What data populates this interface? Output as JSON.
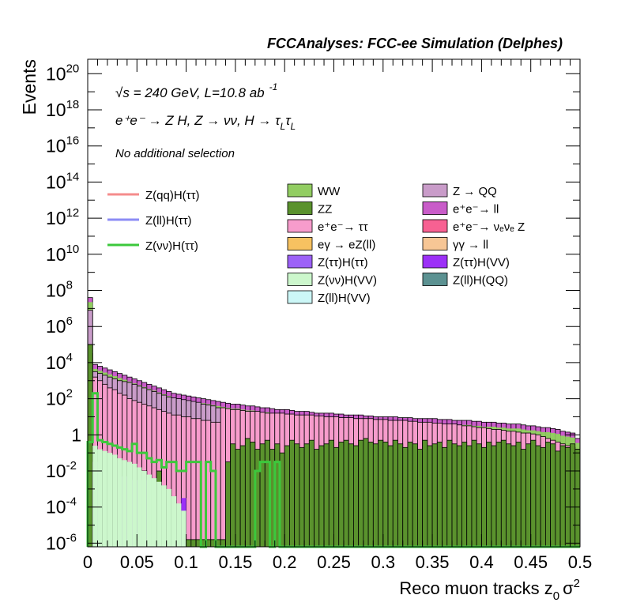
{
  "chart_data": {
    "type": "histogram",
    "title": "FCCAnalyses: FCC-ee Simulation (Delphes)",
    "xlabel": "Reco muon tracks z",
    "xlabel_sub": "0",
    "xlabel_tail": "σ",
    "xlabel_sup": "2",
    "ylabel": "Events",
    "xlim": [
      0,
      0.5
    ],
    "ylim_log10": [
      -6.2,
      20.8
    ],
    "y_log_scale": true,
    "grid": false,
    "x_ticks": [
      {
        "v": 0,
        "label": "0"
      },
      {
        "v": 0.05,
        "label": "0.05"
      },
      {
        "v": 0.1,
        "label": "0.1"
      },
      {
        "v": 0.15,
        "label": "0.15"
      },
      {
        "v": 0.2,
        "label": "0.2"
      },
      {
        "v": 0.25,
        "label": "0.25"
      },
      {
        "v": 0.3,
        "label": "0.3"
      },
      {
        "v": 0.35,
        "label": "0.35"
      },
      {
        "v": 0.4,
        "label": "0.4"
      },
      {
        "v": 0.45,
        "label": "0.45"
      },
      {
        "v": 0.5,
        "label": "0.5"
      }
    ],
    "y_ticks": [
      {
        "e": -6,
        "base": "10",
        "exp": "-6"
      },
      {
        "e": -4,
        "base": "10",
        "exp": "-4"
      },
      {
        "e": -2,
        "base": "10",
        "exp": "-2"
      },
      {
        "e": 0,
        "base": "1",
        "exp": ""
      },
      {
        "e": 2,
        "base": "10",
        "exp": "2"
      },
      {
        "e": 4,
        "base": "10",
        "exp": "4"
      },
      {
        "e": 6,
        "base": "10",
        "exp": "6"
      },
      {
        "e": 8,
        "base": "10",
        "exp": "8"
      },
      {
        "e": 10,
        "base": "10",
        "exp": "10"
      },
      {
        "e": 12,
        "base": "10",
        "exp": "12"
      },
      {
        "e": 14,
        "base": "10",
        "exp": "14"
      },
      {
        "e": 16,
        "base": "10",
        "exp": "16"
      },
      {
        "e": 18,
        "base": "10",
        "exp": "18"
      },
      {
        "e": 20,
        "base": "10",
        "exp": "20"
      }
    ],
    "annotations": {
      "line1_sqrt": "√s",
      "line1_rest": " = 240 GeV, L=10.8 ab",
      "line1_sup": "-1",
      "line2": "e⁺e⁻ → Z H, Z  → νν, H  → τ",
      "line2_sub_a": "L",
      "line2_tau": "τ",
      "line2_sub_b": "L",
      "line3": "No additional selection"
    },
    "signal_legend": [
      {
        "name": "Z(qq)H(ττ)",
        "color": "#f58c8c"
      },
      {
        "name": "Z(ll)H(ττ)",
        "color": "#8c8cf5"
      },
      {
        "name": "Z(νν)H(ττ)",
        "color": "#3cc83c"
      }
    ],
    "background_legend": [
      {
        "name": "WW",
        "color": "#92cd62"
      },
      {
        "name": "Z → QQ",
        "color": "#c99cc9"
      },
      {
        "name": "ZZ",
        "color": "#5a922d"
      },
      {
        "name": "e⁺e⁻→ ll",
        "color": "#c95cc9"
      },
      {
        "name": "e⁺e⁻→ ττ",
        "color": "#f79ccc"
      },
      {
        "name": "e⁺e⁻→ νₑνₑ Z",
        "color": "#f76192"
      },
      {
        "name": "eγ → eZ(ll)",
        "color": "#f7c261"
      },
      {
        "name": "γγ → ll",
        "color": "#f7c695"
      },
      {
        "name": "Z(ττ)H(ττ)",
        "color": "#9c61f7"
      },
      {
        "name": "Z(ττ)H(VV)",
        "color": "#9c30f7"
      },
      {
        "name": "Z(νν)H(VV)",
        "color": "#ccf7cc"
      },
      {
        "name": "Z(ll)H(QQ)",
        "color": "#5c9292"
      },
      {
        "name": "Z(ll)H(VV)",
        "color": "#ccf7f7"
      }
    ],
    "total_log10": [
      7.6,
      3.9,
      3.8,
      3.7,
      3.6,
      3.5,
      3.4,
      3.3,
      3.2,
      3.1,
      3.0,
      2.9,
      2.8,
      2.7,
      2.6,
      2.5,
      2.4,
      2.3,
      2.25,
      2.2,
      2.15,
      2.1,
      2.05,
      2.0,
      1.95,
      1.9,
      1.85,
      1.8,
      1.75,
      1.7,
      1.7,
      1.65,
      1.6,
      1.6,
      1.55,
      1.5,
      1.5,
      1.45,
      1.4,
      1.4,
      1.4,
      1.35,
      1.3,
      1.3,
      1.3,
      1.25,
      1.2,
      1.2,
      1.2,
      1.2,
      1.15,
      1.15,
      1.1,
      1.1,
      1.1,
      1.1,
      1.05,
      1.05,
      1.0,
      1.0,
      1.0,
      1.0,
      1.0,
      0.95,
      0.95,
      0.95,
      0.9,
      0.9,
      0.9,
      0.9,
      0.9,
      0.85,
      0.85,
      0.85,
      0.8,
      0.8,
      0.8,
      0.8,
      0.75,
      0.75,
      0.7,
      0.7,
      0.7,
      0.65,
      0.65,
      0.6,
      0.6,
      0.6,
      0.55,
      0.5,
      0.5,
      0.45,
      0.4,
      0.4,
      0.35,
      0.3,
      0.2,
      0.15,
      0.1,
      -0.2
    ],
    "zqq_log10": [
      6.9,
      3.5,
      3.4,
      3.3,
      3.2,
      3.1,
      3.0,
      2.95,
      2.9,
      2.8,
      2.7,
      2.6,
      2.5,
      2.4,
      2.3,
      2.2,
      2.1,
      2.05,
      2.0,
      1.95,
      1.9,
      1.85,
      1.8,
      1.7,
      1.65,
      1.6,
      1.5,
      -2.7,
      -4.8,
      -5.5,
      -2.6,
      -2.6,
      -2.6,
      -5.9,
      -2.7,
      -2.6,
      -5.8,
      -2.6,
      -2.6,
      -2.6,
      -2.6,
      -2.6,
      -5.9,
      -2.6,
      -2.6,
      -2.6,
      -2.7,
      -2.6,
      -2.6,
      -5.8,
      -2.6,
      -2.6,
      -2.6,
      -2.6,
      -2.6,
      -5.7,
      -2.6,
      -2.6,
      -2.6,
      -2.6,
      -2.6,
      -2.6,
      -2.6,
      -2.6,
      -2.6,
      -2.6,
      -2.6,
      -2.6,
      -5.9,
      -2.6,
      -2.6,
      -2.6,
      -2.6,
      -2.6,
      -2.6,
      -2.6,
      -2.6,
      -5.6,
      -2.6,
      -2.6,
      -2.6,
      -2.6,
      -2.6,
      -2.6,
      -2.6,
      -2.6,
      -2.6,
      -2.6,
      -2.6,
      -2.6,
      -2.6,
      -2.6,
      -2.6,
      -2.6,
      -2.6,
      -2.6,
      -2.6,
      -2.6,
      -2.6,
      -2.6
    ],
    "ee_tautau_log10": [
      4.5,
      3.2,
      3.0,
      2.8,
      2.6,
      2.5,
      2.3,
      2.2,
      2.0,
      1.9,
      1.8,
      1.7,
      1.6,
      1.5,
      1.4,
      1.3,
      1.2,
      1.1,
      1.1,
      1.0,
      1.0,
      0.9,
      0.9,
      0.8,
      0.8,
      0.7,
      0.7,
      1.5,
      1.45,
      1.4,
      1.4,
      1.35,
      1.3,
      1.3,
      1.3,
      1.25,
      1.2,
      1.2,
      1.2,
      1.2,
      1.15,
      1.15,
      1.1,
      1.1,
      1.1,
      1.1,
      1.05,
      1.05,
      1.0,
      1.0,
      1.0,
      0.95,
      0.95,
      0.95,
      0.9,
      0.9,
      0.9,
      0.9,
      0.85,
      0.85,
      0.85,
      0.8,
      0.8,
      0.8,
      0.8,
      0.75,
      0.75,
      0.7,
      0.7,
      0.7,
      0.65,
      0.65,
      0.6,
      0.6,
      0.6,
      0.55,
      0.5,
      0.5,
      0.45,
      0.4,
      0.4,
      0.35,
      0.3,
      0.3,
      0.25,
      0.2,
      0.2,
      0.15,
      0.1,
      0.1,
      0.05,
      0.0,
      -0.1,
      -0.2,
      -0.3,
      -0.4,
      -0.5,
      -0.6,
      -0.7,
      -0.8
    ],
    "zz_log10": [
      5.0,
      -2.0,
      -2.2,
      -2.4,
      -5.0,
      -5.5,
      -2.0,
      -5.8,
      -5.8,
      -5.8,
      -5.8,
      -2.0,
      -5.8,
      -5.8,
      -2.0,
      -5.8,
      -5.8,
      -5.8,
      -5.8,
      -5.8,
      -5.8,
      -5.8,
      -5.8,
      -5.8,
      -5.8,
      -5.8,
      -5.8,
      -5.8,
      -1.5,
      -0.5,
      -0.8,
      -0.6,
      -0.2,
      -0.4,
      -0.8,
      -0.5,
      -0.3,
      -0.8,
      -0.5,
      -1.0,
      -0.6,
      -0.3,
      -0.5,
      -0.7,
      -0.5,
      -0.3,
      -0.8,
      -0.6,
      -0.5,
      -0.3,
      -0.7,
      -0.4,
      -0.3,
      -0.5,
      -0.6,
      -0.3,
      -0.2,
      -0.4,
      -0.5,
      -0.3,
      -0.4,
      -0.6,
      -0.3,
      -0.5,
      -0.7,
      -0.4,
      -0.5,
      -0.8,
      -0.3,
      -0.6,
      -0.5,
      -0.4,
      -0.7,
      -0.3,
      -0.5,
      -0.6,
      -0.4,
      -0.6,
      -0.3,
      -0.5,
      -0.7,
      -0.4,
      -0.6,
      -0.4,
      -0.3,
      -0.5,
      -0.6,
      -0.4,
      -0.8,
      -0.5,
      -0.3,
      -0.6,
      -0.7,
      -0.4,
      -0.5,
      -0.9,
      -0.6,
      -0.7,
      -0.5,
      -0.8
    ],
    "signal_znunu_log10": [
      -0.4,
      2.3,
      -0.3,
      -0.4,
      -0.5,
      -0.6,
      -0.7,
      -0.8,
      -0.9,
      -0.5,
      -1.0,
      -1.0,
      -1.3,
      -1.5,
      -1.4,
      -1.8,
      -1.5,
      -1.5,
      -2.0,
      -2.0,
      -1.5,
      -1.5,
      -1.5,
      -5.8,
      -1.5,
      -2.0,
      -5.8,
      -5.8,
      -5.8,
      -5.8,
      -5.8,
      -5.8,
      -5.8,
      -5.8,
      -2.0,
      -1.5,
      -1.5,
      -5.8,
      -1.5,
      -5.8,
      -5.8,
      -5.8,
      -5.8,
      -5.8,
      -5.8,
      -5.8,
      -5.8,
      -5.8,
      -5.8,
      -5.8,
      -5.8,
      -5.8,
      -5.8,
      -5.8,
      -5.8,
      -5.8,
      -5.8,
      -5.8,
      -5.8,
      -5.8,
      -5.8,
      -5.8,
      -5.8,
      -5.8,
      -5.8,
      -5.8,
      -5.8,
      -5.8,
      -5.8,
      -5.8,
      -5.8,
      -5.8,
      -5.8,
      -5.8,
      -5.8,
      -5.8,
      -5.8,
      -5.8,
      -5.8,
      -5.8,
      -5.8,
      -5.8,
      -5.8,
      -5.8,
      -5.8,
      -5.8,
      -5.8,
      -5.8,
      -5.8,
      -5.8,
      -5.8,
      -5.8,
      -5.8,
      -5.8,
      -5.8,
      -5.8,
      -5.8,
      -5.8,
      -5.8,
      -5.8
    ]
  }
}
